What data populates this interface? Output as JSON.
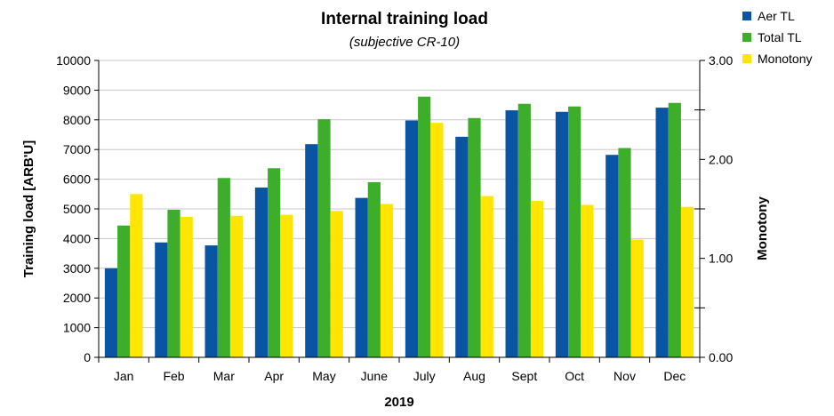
{
  "chart_data": {
    "type": "bar",
    "title": "Internal training load",
    "subtitle": "(subjective CR-10)",
    "xlabel": "2019",
    "ylabel": "Training load [ARB'U]",
    "y2label": "Monotony",
    "categories": [
      "Jan",
      "Feb",
      "Mar",
      "Apr",
      "May",
      "June",
      "July",
      "Aug",
      "Sept",
      "Oct",
      "Nov",
      "Dec"
    ],
    "ylim": [
      0,
      10000
    ],
    "y2lim": [
      0,
      3
    ],
    "yticks": [
      "0",
      "1000",
      "2000",
      "3000",
      "4000",
      "5000",
      "6000",
      "7000",
      "8000",
      "9000",
      "10000"
    ],
    "y2ticks": [
      "0.00",
      "1.00",
      "2.00",
      "3.00"
    ],
    "grid": true,
    "legend_position": "top-right",
    "series": [
      {
        "name": "Aer TL",
        "axis": "left",
        "color": "#0a55a3",
        "values": [
          3000,
          3870,
          3770,
          5720,
          7180,
          5370,
          7980,
          7430,
          8320,
          8270,
          6820,
          8410
        ]
      },
      {
        "name": "Total TL",
        "axis": "left",
        "color": "#3cae2a",
        "values": [
          4440,
          4970,
          6040,
          6370,
          8020,
          5900,
          8780,
          8060,
          8540,
          8450,
          7050,
          8570
        ]
      },
      {
        "name": "Monotony",
        "axis": "right",
        "color": "#ffe500",
        "values": [
          1.65,
          1.42,
          1.43,
          1.44,
          1.48,
          1.55,
          2.37,
          1.63,
          1.58,
          1.54,
          1.19,
          1.52
        ]
      }
    ]
  }
}
